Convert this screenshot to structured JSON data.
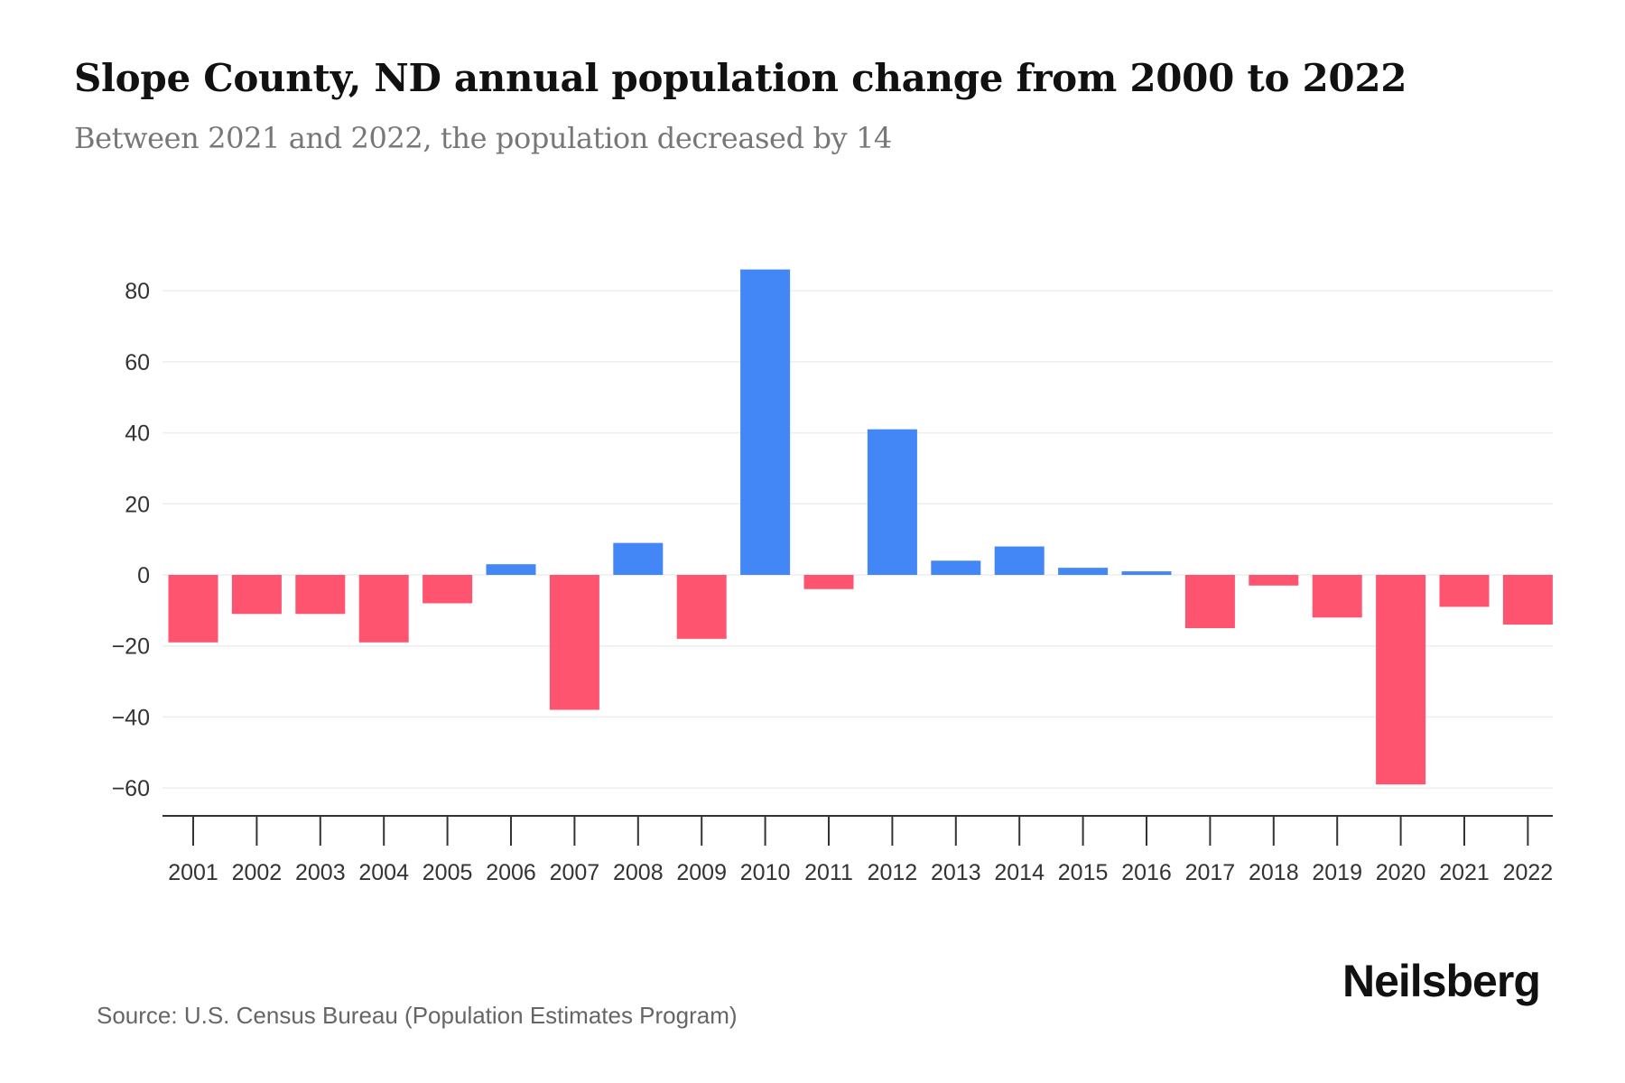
{
  "header": {
    "title": "Slope County, ND annual population change from 2000 to 2022",
    "subtitle": "Between 2021 and 2022, the population decreased by 14"
  },
  "footer": {
    "source": "Source: U.S. Census Bureau (Population Estimates Program)",
    "logo": "Neilsberg"
  },
  "colors": {
    "positive": "#4287F5",
    "negative": "#FF5470",
    "gridline": "#EEEEEE",
    "axis": "#333333"
  },
  "chart_data": {
    "type": "bar",
    "title": "Slope County, ND annual population change from 2000 to 2022",
    "subtitle": "Between 2021 and 2022, the population decreased by 14",
    "xlabel": "",
    "ylabel": "",
    "categories": [
      "2001",
      "2002",
      "2003",
      "2004",
      "2005",
      "2006",
      "2007",
      "2008",
      "2009",
      "2010",
      "2011",
      "2012",
      "2013",
      "2014",
      "2015",
      "2016",
      "2017",
      "2018",
      "2019",
      "2020",
      "2021",
      "2022"
    ],
    "values": [
      -19,
      -11,
      -11,
      -19,
      -8,
      3,
      -38,
      9,
      -18,
      86,
      -4,
      41,
      4,
      8,
      2,
      1,
      -15,
      -3,
      -12,
      -59,
      -9,
      -14
    ],
    "ylim": [
      -67,
      90
    ],
    "yticks": [
      80,
      60,
      40,
      20,
      0,
      -20,
      -40,
      -60
    ],
    "ytick_labels": [
      "80",
      "60",
      "40",
      "20",
      "0",
      "−20",
      "−40",
      "−60"
    ],
    "grid": true,
    "legend": "none",
    "positive_color": "#4287F5",
    "negative_color": "#FF5470",
    "source": "Source: U.S. Census Bureau (Population Estimates Program)"
  }
}
